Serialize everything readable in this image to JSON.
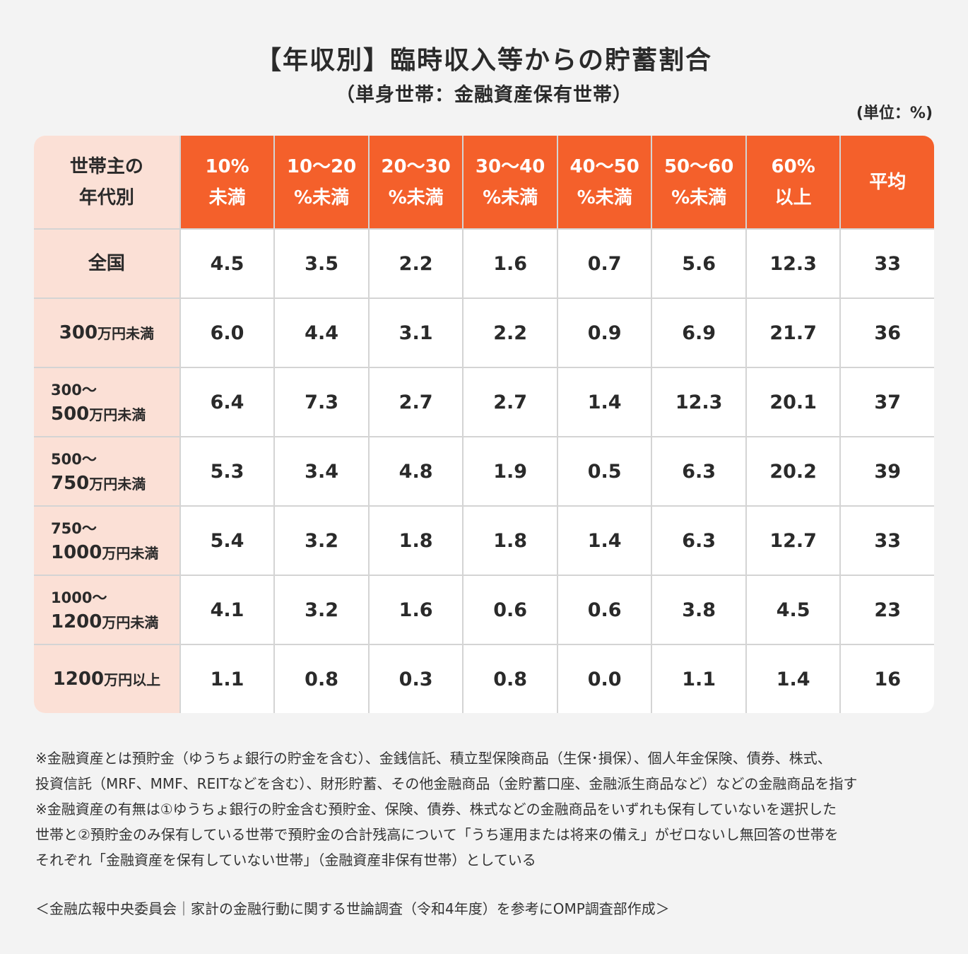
{
  "title": "【年収別】臨時収入等からの貯蓄割合",
  "subtitle": "（単身世帯：金融資産保有世帯）",
  "unit": "(単位：%)",
  "chart_data": {
    "type": "table",
    "corner": [
      "世帯主の",
      "年代別"
    ],
    "columns": [
      [
        "10%",
        "未満"
      ],
      [
        "10〜20",
        "%未満"
      ],
      [
        "20〜30",
        "%未満"
      ],
      [
        "30〜40",
        "%未満"
      ],
      [
        "40〜50",
        "%未満"
      ],
      [
        "50〜60",
        "%未満"
      ],
      [
        "60%",
        "以上"
      ],
      [
        "平均"
      ]
    ],
    "rows": [
      {
        "pre": "",
        "num": "全国",
        "unit": "",
        "values": [
          "4.5",
          "3.5",
          "2.2",
          "1.6",
          "0.7",
          "5.6",
          "12.3",
          "33"
        ]
      },
      {
        "pre": "",
        "num": "300",
        "unit": "万円未満",
        "values": [
          "6.0",
          "4.4",
          "3.1",
          "2.2",
          "0.9",
          "6.9",
          "21.7",
          "36"
        ]
      },
      {
        "pre": "300〜",
        "num": "500",
        "unit": "万円未満",
        "values": [
          "6.4",
          "7.3",
          "2.7",
          "2.7",
          "1.4",
          "12.3",
          "20.1",
          "37"
        ]
      },
      {
        "pre": "500〜",
        "num": "750",
        "unit": "万円未満",
        "values": [
          "5.3",
          "3.4",
          "4.8",
          "1.9",
          "0.5",
          "6.3",
          "20.2",
          "39"
        ]
      },
      {
        "pre": "750〜",
        "num": "1000",
        "unit": "万円未満",
        "values": [
          "5.4",
          "3.2",
          "1.8",
          "1.8",
          "1.4",
          "6.3",
          "12.7",
          "33"
        ]
      },
      {
        "pre": "1000〜",
        "num": "1200",
        "unit": "万円未満",
        "values": [
          "4.1",
          "3.2",
          "1.6",
          "0.6",
          "0.6",
          "3.8",
          "4.5",
          "23"
        ]
      },
      {
        "pre": "",
        "num": "1200",
        "unit": "万円以上",
        "values": [
          "1.1",
          "0.8",
          "0.3",
          "0.8",
          "0.0",
          "1.1",
          "1.4",
          "16"
        ]
      }
    ]
  },
  "colors": {
    "header": "#f4602b",
    "rowhead": "#fbe0d6",
    "background": "#f3f3f3"
  },
  "notes": [
    "※金融資産とは預貯金（ゆうちょ銀行の貯金を含む）、金銭信託、積立型保険商品（生保･損保）、個人年金保険、債券、株式、",
    "投資信託（MRF、MMF、REITなどを含む）、財形貯蓄、その他金融商品（金貯蓄口座、金融派生商品など）などの金融商品を指す",
    "※金融資産の有無は①ゆうちょ銀行の貯金含む預貯金、保険、債券、株式などの金融商品をいずれも保有していないを選択した",
    "世帯と②預貯金のみ保有している世帯で預貯金の合計残高について「うち運用または将来の備え」がゼロないし無回答の世帯を",
    "それぞれ「金融資産を保有していない世帯」（金融資産非保有世帯）としている"
  ],
  "source": "＜金融広報中央委員会｜家計の金融行動に関する世論調査（令和4年度）を参考にOMP調査部作成＞"
}
